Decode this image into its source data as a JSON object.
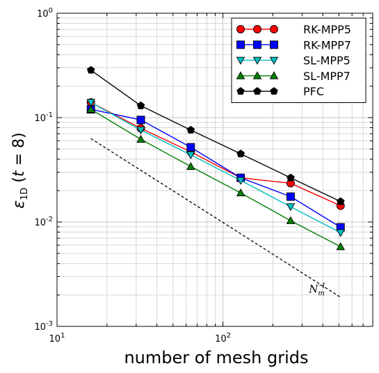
{
  "chart_data": {
    "type": "line",
    "xscale": "log",
    "yscale": "log",
    "xlim": [
      10,
      800
    ],
    "ylim": [
      0.001,
      1
    ],
    "xlabel": "number of mesh grids",
    "ylabel": "ε_1D (t = 8)",
    "grid": true,
    "legend_position": "top-right",
    "x_ticks": [
      {
        "value": 10,
        "mantissa": "10",
        "exp": "1"
      },
      {
        "value": 100,
        "mantissa": "10",
        "exp": "2"
      }
    ],
    "y_ticks": [
      {
        "value": 0.001,
        "mantissa": "10",
        "exp": "-3"
      },
      {
        "value": 0.01,
        "mantissa": "10",
        "exp": "-2"
      },
      {
        "value": 0.1,
        "mantissa": "10",
        "exp": "-1"
      },
      {
        "value": 1,
        "mantissa": "10",
        "exp": "0"
      }
    ],
    "x": [
      16,
      32,
      64,
      128,
      256,
      512
    ],
    "series": [
      {
        "name": "RK-MPP5",
        "color": "#ff0000",
        "marker": "circle",
        "values": [
          0.14,
          0.079,
          0.047,
          0.0265,
          0.0235,
          0.0143
        ]
      },
      {
        "name": "RK-MPP7",
        "color": "#0000ff",
        "marker": "square",
        "values": [
          0.12,
          0.095,
          0.052,
          0.0265,
          0.0175,
          0.0089
        ]
      },
      {
        "name": "SL-MPP5",
        "color": "#00bfbf",
        "marker": "triangle-down",
        "values": [
          0.14,
          0.076,
          0.044,
          0.025,
          0.014,
          0.0079
        ]
      },
      {
        "name": "SL-MPP7",
        "color": "#008000",
        "marker": "triangle-up",
        "values": [
          0.12,
          0.062,
          0.034,
          0.019,
          0.0103,
          0.0058
        ]
      },
      {
        "name": "PFC",
        "color": "#000000",
        "marker": "pentagon",
        "values": [
          0.285,
          0.13,
          0.076,
          0.045,
          0.0265,
          0.0157
        ]
      }
    ],
    "reference_line": {
      "style": "dashed",
      "x": [
        16,
        512
      ],
      "y": [
        0.063,
        0.0019
      ]
    },
    "annotation": {
      "text": "N",
      "subscript": "m",
      "superscript": "-1",
      "x": 330,
      "y": 0.0021
    }
  }
}
